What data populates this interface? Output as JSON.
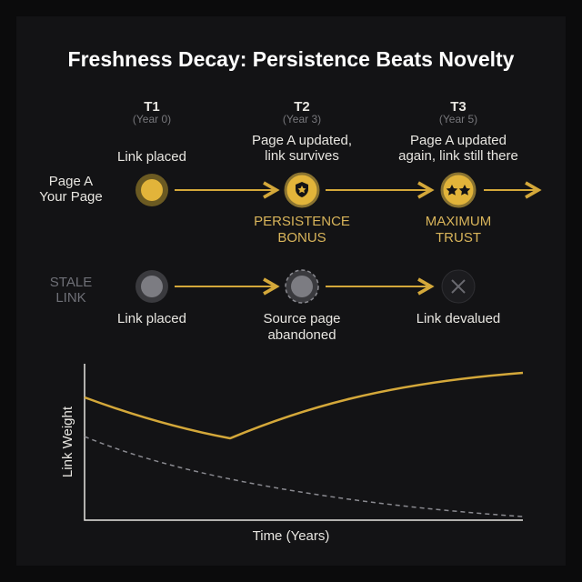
{
  "title": "Freshness Decay: Persistence Beats Novelty",
  "columns": [
    {
      "label": "T1",
      "sub": "(Year 0)",
      "fresh_event": [
        "Link placed"
      ],
      "badge": [],
      "stale_event": [
        "Link placed"
      ]
    },
    {
      "label": "T2",
      "sub": "(Year 3)",
      "fresh_event": [
        "Page A updated,",
        "link survives"
      ],
      "badge": [
        "PERSISTENCE",
        "BONUS"
      ],
      "stale_event": [
        "Source page",
        "abandoned"
      ]
    },
    {
      "label": "T3",
      "sub": "(Year 5)",
      "fresh_event": [
        "Page A updated",
        "again, link still there"
      ],
      "badge": [
        "MAXIMUM",
        "TRUST"
      ],
      "stale_event": [
        "Link devalued"
      ]
    }
  ],
  "fresh_row_label": [
    "Page A",
    "Your Page"
  ],
  "stale_row_label": [
    "STALE",
    "LINK"
  ],
  "chart": {
    "y_label": "Link Weight",
    "x_label": "Time (Years)"
  }
}
